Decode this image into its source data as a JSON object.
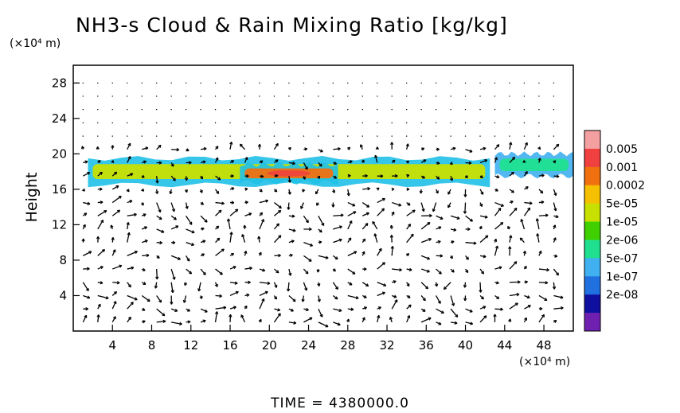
{
  "chart_data": {
    "type": "heatmap",
    "title": "NH3-s Cloud & Rain Mixing Ratio [kg/kg]",
    "ylabel": "Height",
    "x_unit": "(×10⁴ m)",
    "y_unit": "(×10⁴ m)",
    "xlim": [
      0,
      51
    ],
    "ylim": [
      0,
      30
    ],
    "x_ticks": [
      4,
      8,
      12,
      16,
      20,
      24,
      28,
      32,
      36,
      40,
      44,
      48
    ],
    "y_ticks": [
      4,
      8,
      12,
      16,
      20,
      24,
      28
    ],
    "colorbar": {
      "labels": [
        "0.005",
        "0.001",
        "0.0002",
        "5e-05",
        "1e-05",
        "2e-06",
        "5e-07",
        "1e-07",
        "2e-08"
      ],
      "colors": [
        "#f5a0a0",
        "#f04040",
        "#f07010",
        "#f5c000",
        "#c8e000",
        "#40d000",
        "#20e090",
        "#40b0f0",
        "#2070e0",
        "#1010a0",
        "#7020b0"
      ]
    },
    "cloud_layer": {
      "bands": [
        {
          "x_start": 1.5,
          "x_end": 42.5,
          "y_bottom": 16.5,
          "y_top": 19.5,
          "level": "1e-05"
        },
        {
          "x_start": 17,
          "x_end": 27,
          "y_bottom": 16.8,
          "y_top": 18.8,
          "level": "0.0002"
        },
        {
          "x_start": 43,
          "x_end": 51,
          "y_bottom": 17.5,
          "y_top": 20,
          "level": "5e-07"
        }
      ]
    },
    "vectors": "wind field arrows over the domain"
  },
  "footer": {
    "time_label": "TIME  =  4380000.0"
  }
}
